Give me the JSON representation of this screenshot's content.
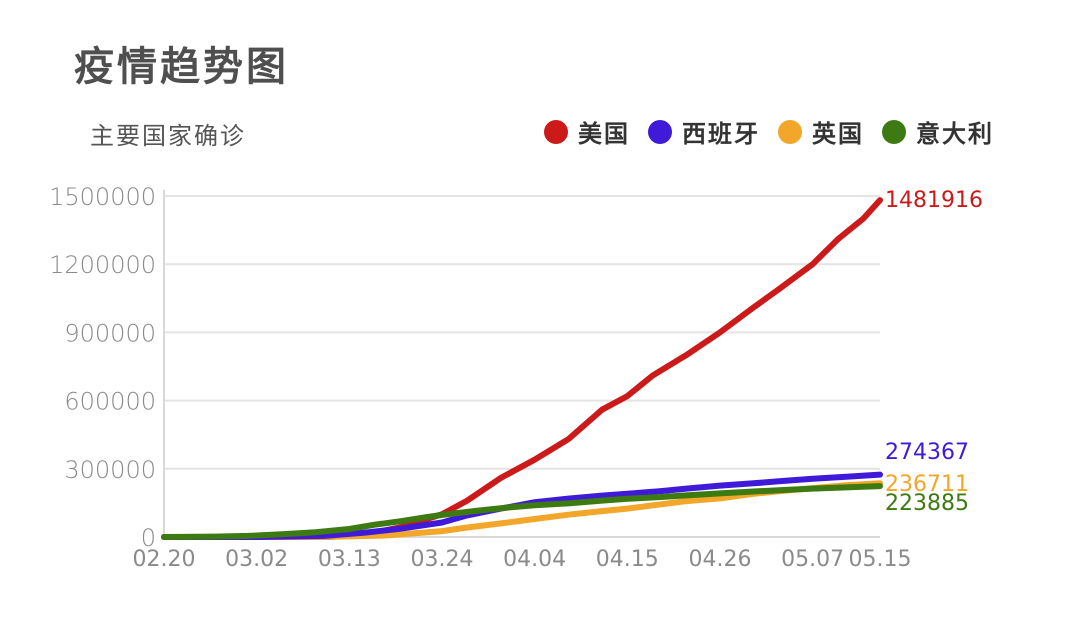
{
  "header": {
    "title": "疫情趋势图",
    "subtitle": "主要国家确诊"
  },
  "chart_data": {
    "type": "line",
    "title": "疫情趋势图",
    "subtitle": "主要国家确诊",
    "xlabel": "",
    "ylabel": "",
    "ylim": [
      0,
      1500000
    ],
    "yticks": [
      0,
      300000,
      600000,
      900000,
      1200000,
      1500000
    ],
    "ytick_labels": [
      "0",
      "300000",
      "600000",
      "900000",
      "1200000",
      "1500000"
    ],
    "xtick_labels": [
      "02.20",
      "03.02",
      "03.13",
      "03.24",
      "04.04",
      "04.15",
      "04.26",
      "05.07",
      "05.15"
    ],
    "xticks": [
      0,
      11,
      22,
      33,
      44,
      55,
      66,
      77,
      85
    ],
    "xlim": [
      0,
      85
    ],
    "grid": true,
    "legend_position": "top-right",
    "series": [
      {
        "name": "美国",
        "color": "#cc1a1a",
        "end_label": "1481916",
        "points": [
          [
            0,
            15
          ],
          [
            11,
            90
          ],
          [
            20,
            1500
          ],
          [
            24,
            13000
          ],
          [
            28,
            42000
          ],
          [
            33,
            100000
          ],
          [
            36,
            160000
          ],
          [
            40,
            260000
          ],
          [
            44,
            340000
          ],
          [
            48,
            430000
          ],
          [
            52,
            560000
          ],
          [
            55,
            620000
          ],
          [
            58,
            710000
          ],
          [
            62,
            800000
          ],
          [
            66,
            900000
          ],
          [
            70,
            1010000
          ],
          [
            73,
            1090000
          ],
          [
            77,
            1200000
          ],
          [
            80,
            1310000
          ],
          [
            83,
            1400000
          ],
          [
            85,
            1481916
          ]
        ]
      },
      {
        "name": "西班牙",
        "color": "#3f1ad9",
        "end_label": "274367",
        "points": [
          [
            0,
            2
          ],
          [
            11,
            120
          ],
          [
            19,
            5000
          ],
          [
            24,
            20000
          ],
          [
            28,
            36000
          ],
          [
            33,
            64000
          ],
          [
            36,
            95000
          ],
          [
            40,
            125000
          ],
          [
            44,
            153000
          ],
          [
            48,
            169000
          ],
          [
            52,
            182000
          ],
          [
            55,
            190000
          ],
          [
            59,
            202000
          ],
          [
            62,
            213000
          ],
          [
            66,
            226000
          ],
          [
            70,
            236000
          ],
          [
            73,
            245000
          ],
          [
            77,
            256000
          ],
          [
            81,
            265000
          ],
          [
            85,
            274367
          ]
        ]
      },
      {
        "name": "英国",
        "color": "#f2a62a",
        "end_label": "236711",
        "points": [
          [
            0,
            9
          ],
          [
            11,
            40
          ],
          [
            20,
            800
          ],
          [
            26,
            6000
          ],
          [
            30,
            17000
          ],
          [
            33,
            26000
          ],
          [
            36,
            42000
          ],
          [
            40,
            60000
          ],
          [
            44,
            79000
          ],
          [
            48,
            98000
          ],
          [
            52,
            114000
          ],
          [
            55,
            125000
          ],
          [
            59,
            144000
          ],
          [
            62,
            158000
          ],
          [
            66,
            170000
          ],
          [
            70,
            190000
          ],
          [
            73,
            201000
          ],
          [
            77,
            215000
          ],
          [
            81,
            228000
          ],
          [
            85,
            236711
          ]
        ]
      },
      {
        "name": "意大利",
        "color": "#3d7a12",
        "end_label": "223885",
        "points": [
          [
            0,
            3
          ],
          [
            6,
            1700
          ],
          [
            10,
            5000
          ],
          [
            14,
            12000
          ],
          [
            18,
            21000
          ],
          [
            22,
            35000
          ],
          [
            25,
            54000
          ],
          [
            28,
            69000
          ],
          [
            31,
            86000
          ],
          [
            33,
            97000
          ],
          [
            37,
            115000
          ],
          [
            41,
            130000
          ],
          [
            44,
            140000
          ],
          [
            48,
            148000
          ],
          [
            52,
            160000
          ],
          [
            55,
            168000
          ],
          [
            59,
            176000
          ],
          [
            62,
            183000
          ],
          [
            66,
            192000
          ],
          [
            70,
            200000
          ],
          [
            73,
            206000
          ],
          [
            77,
            213000
          ],
          [
            81,
            218000
          ],
          [
            85,
            223885
          ]
        ]
      }
    ]
  }
}
